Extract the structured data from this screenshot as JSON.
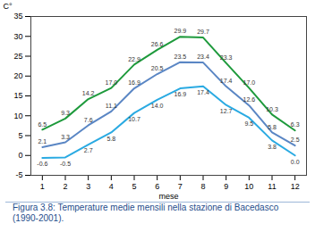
{
  "chart_data": {
    "type": "line",
    "caption": "Figura 3.8: Temperature medie mensili nella stazione di Bacedasco (1990-2001).",
    "y_label": "C°",
    "x_label": "mese",
    "x": [
      1,
      2,
      3,
      4,
      5,
      6,
      7,
      8,
      9,
      10,
      11,
      12
    ],
    "series": [
      {
        "color": "#1e9a3c",
        "values": [
          6.5,
          9.3,
          14.2,
          17.0,
          22.9,
          26.6,
          29.9,
          29.7,
          23.3,
          17.0,
          10.3,
          6.3
        ],
        "value_labels": [
          "6.5",
          "9.3",
          "14.2",
          "17.0",
          "22.9",
          "26.6",
          "29.9",
          "29.7",
          "23.3",
          "17.0",
          "10.3",
          "6.3"
        ]
      },
      {
        "color": "#5a86c4",
        "values": [
          2.1,
          3.3,
          7.6,
          11.1,
          16.9,
          20.5,
          23.5,
          23.4,
          17.4,
          12.6,
          5.8,
          2.5
        ],
        "value_labels": [
          "2.1",
          "3.3",
          "7.6",
          "11.1",
          "16.9",
          "20.5",
          "23.5",
          "23.4",
          "17.4",
          "12.6",
          "5.8",
          "2.5"
        ]
      },
      {
        "color": "#2aaae2",
        "values": [
          -0.6,
          -0.5,
          2.7,
          5.8,
          10.7,
          14.0,
          16.9,
          17.4,
          12.7,
          9.5,
          3.8,
          0.0
        ],
        "value_labels": [
          "-0.6",
          "-0.5",
          "2.7",
          "5.8",
          "10.7",
          "14.0",
          "16.9",
          "17.4",
          "12.7",
          "9.5",
          "3.8",
          "0.0"
        ]
      }
    ],
    "xlim": [
      0.5,
      12.5
    ],
    "xticks": [
      1,
      2,
      3,
      4,
      5,
      6,
      7,
      8,
      9,
      10,
      11,
      12
    ],
    "ylim": [
      -5,
      35
    ],
    "yticks": [
      -5,
      0,
      5,
      10,
      15,
      20,
      25,
      30,
      35
    ],
    "grid": false,
    "data_labels": true
  }
}
